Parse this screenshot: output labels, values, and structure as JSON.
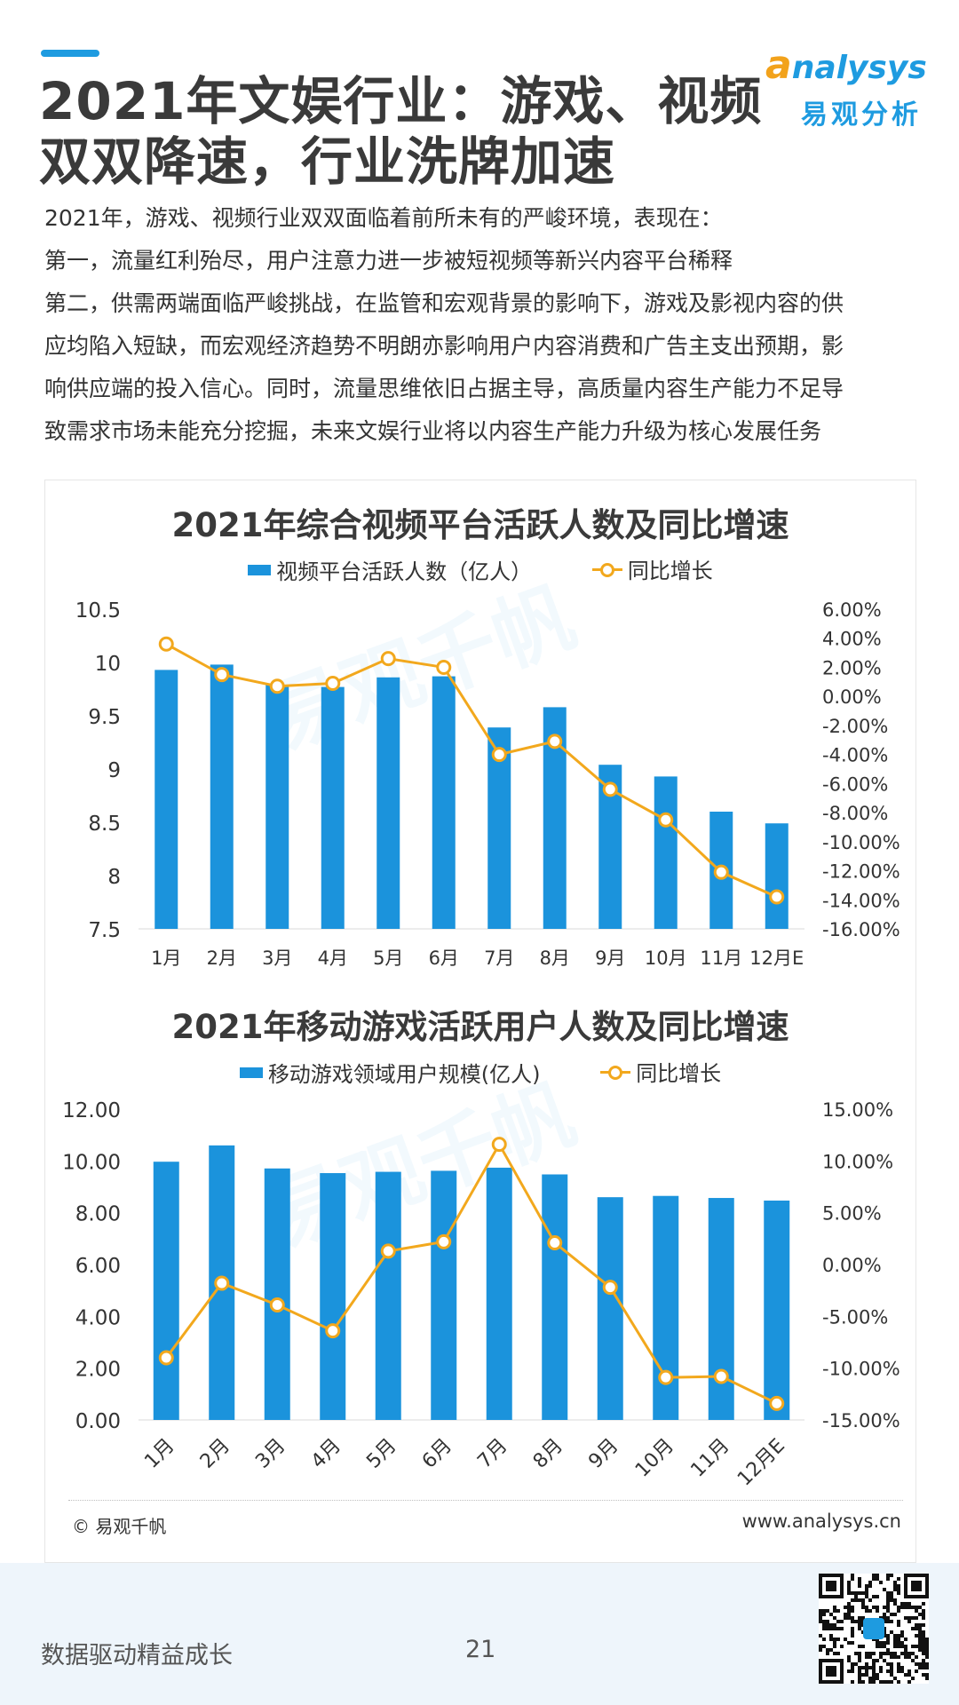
{
  "header": {
    "title_line1": "2021年文娱行业：游戏、视频",
    "title_line2": "双双降速，行业洗牌加速",
    "logo_en_first": "a",
    "logo_en_rest": "nalysys",
    "logo_cn": "易观分析"
  },
  "intro": [
    "2021年，游戏、视频行业双双面临着前所未有的严峻环境，表现在：",
    "第一，流量红利殆尽，用户注意力进一步被短视频等新兴内容平台稀释",
    "第二，供需两端面临严峻挑战，在监管和宏观背景的影响下，游戏及影视内容的供",
    "应均陷入短缺，而宏观经济趋势不明朗亦影响用户内容消费和广告主支出预期，影",
    "响供应端的投入信心。同时，流量思维依旧占据主导，高质量内容生产能力不足导",
    "致需求市场未能充分挖掘，未来文娱行业将以内容生产能力升级为核心发展任务"
  ],
  "chart_data": [
    {
      "type": "bar",
      "title": "2021年综合视频平台活跃人数及同比增速",
      "categories": [
        "1月",
        "2月",
        "3月",
        "4月",
        "5月",
        "6月",
        "7月",
        "8月",
        "9月",
        "10月",
        "11月",
        "12月E"
      ],
      "series": [
        {
          "name": "视频平台活跃人数（亿人）",
          "type": "bar",
          "axis": "left",
          "color": "#1b93dc",
          "values": [
            9.93,
            9.98,
            9.79,
            9.77,
            9.86,
            9.87,
            9.39,
            9.58,
            9.04,
            8.93,
            8.6,
            8.49
          ]
        },
        {
          "name": "同比增长",
          "type": "line",
          "axis": "right",
          "color": "#f2a81d",
          "values": [
            3.6,
            1.5,
            0.7,
            0.9,
            2.6,
            2.0,
            -4.0,
            -3.1,
            -6.4,
            -8.5,
            -12.1,
            -13.8
          ]
        }
      ],
      "ylim_left": [
        7.5,
        10.5
      ],
      "left_ticks": [
        "7.5",
        "8",
        "8.5",
        "9",
        "9.5",
        "10",
        "10.5"
      ],
      "ylim_right": [
        -16,
        6
      ],
      "right_ticks": [
        "-16.00%",
        "-14.00%",
        "-12.00%",
        "-10.00%",
        "-8.00%",
        "-6.00%",
        "-4.00%",
        "-2.00%",
        "0.00%",
        "2.00%",
        "4.00%",
        "6.00%"
      ],
      "x_labels_rotated": false,
      "legend_position": "top"
    },
    {
      "type": "bar",
      "title": "2021年移动游戏活跃用户人数及同比增速",
      "categories": [
        "1月",
        "2月",
        "3月",
        "4月",
        "5月",
        "6月",
        "7月",
        "8月",
        "9月",
        "10月",
        "11月",
        "12月E"
      ],
      "series": [
        {
          "name": "移动游戏领域用户规模(亿人)",
          "type": "bar",
          "axis": "left",
          "color": "#1b93dc",
          "values": [
            9.97,
            10.6,
            9.71,
            9.53,
            9.58,
            9.62,
            9.74,
            9.48,
            8.6,
            8.65,
            8.57,
            8.47
          ]
        },
        {
          "name": "同比增长",
          "type": "line",
          "axis": "right",
          "color": "#f2a81d",
          "values": [
            -9.0,
            -1.8,
            -3.9,
            -6.4,
            1.3,
            2.2,
            11.6,
            2.1,
            -2.2,
            -10.9,
            -10.8,
            -13.4
          ]
        }
      ],
      "ylim_left": [
        0,
        12
      ],
      "left_ticks": [
        "0.00",
        "2.00",
        "4.00",
        "6.00",
        "8.00",
        "10.00",
        "12.00"
      ],
      "ylim_right": [
        -15,
        15
      ],
      "right_ticks": [
        "-15.00%",
        "-10.00%",
        "-5.00%",
        "0.00%",
        "5.00%",
        "10.00%",
        "15.00%"
      ],
      "x_labels_rotated": true,
      "legend_position": "top"
    }
  ],
  "chart_footer": {
    "copyright": "© 易观千帆",
    "site": "www.analysys.cn"
  },
  "footer": {
    "slogan": "数据驱动精益成长",
    "page_number": "21"
  }
}
